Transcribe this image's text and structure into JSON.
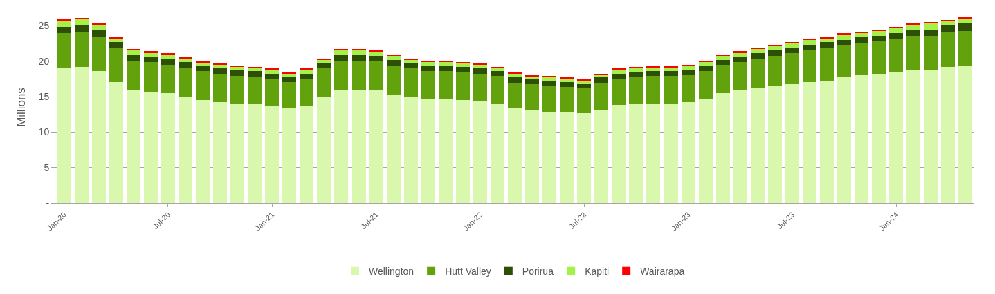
{
  "chart_data": {
    "type": "bar",
    "stacked": true,
    "ylabel": "Millions",
    "categories": [
      "Jan-20",
      null,
      null,
      null,
      null,
      null,
      "Jul-20",
      null,
      null,
      null,
      null,
      null,
      "Jan-21",
      null,
      null,
      null,
      null,
      null,
      "Jul-21",
      null,
      null,
      null,
      null,
      null,
      "Jan-22",
      null,
      null,
      null,
      null,
      null,
      "Jul-22",
      null,
      null,
      null,
      null,
      null,
      "Jan-23",
      null,
      null,
      null,
      null,
      null,
      "Jul-23",
      null,
      null,
      null,
      null,
      null,
      "Jan-24",
      null,
      null,
      null,
      null
    ],
    "series": [
      {
        "name": "Wellington",
        "color": "#d9f7ad",
        "values": [
          19.0,
          19.2,
          18.6,
          17.1,
          15.9,
          15.7,
          15.5,
          14.9,
          14.5,
          14.2,
          14.0,
          14.0,
          13.6,
          13.4,
          13.6,
          14.9,
          15.9,
          15.9,
          15.9,
          15.3,
          14.9,
          14.7,
          14.7,
          14.5,
          14.3,
          14.0,
          13.4,
          13.1,
          12.9,
          12.9,
          12.7,
          13.2,
          13.8,
          14.0,
          14.0,
          14.0,
          14.2,
          14.7,
          15.5,
          15.9,
          16.2,
          16.6,
          16.8,
          17.1,
          17.3,
          17.7,
          18.1,
          18.2,
          18.4,
          18.8,
          18.8,
          19.2,
          19.4
        ]
      },
      {
        "name": "Hutt Valley",
        "color": "#62a30d",
        "values": [
          5.0,
          5.0,
          4.8,
          4.7,
          4.2,
          4.2,
          4.0,
          4.1,
          4.1,
          4.0,
          3.9,
          3.7,
          3.9,
          3.7,
          3.9,
          4.1,
          4.2,
          4.2,
          4.2,
          4.0,
          4.1,
          3.9,
          3.9,
          3.9,
          3.9,
          3.9,
          3.6,
          3.7,
          3.7,
          3.5,
          3.5,
          3.8,
          3.7,
          3.7,
          3.9,
          3.9,
          3.9,
          3.9,
          4.0,
          4.0,
          4.1,
          4.2,
          4.4,
          4.5,
          4.5,
          4.6,
          4.4,
          4.7,
          4.7,
          4.8,
          4.8,
          5.0,
          4.9
        ]
      },
      {
        "name": "Porirua",
        "color": "#2d4f06",
        "values": [
          0.9,
          0.9,
          1.1,
          0.9,
          0.9,
          0.7,
          0.9,
          0.9,
          0.7,
          0.8,
          0.9,
          0.9,
          0.7,
          0.7,
          0.7,
          0.7,
          0.9,
          0.9,
          0.7,
          0.9,
          0.7,
          0.7,
          0.7,
          0.8,
          0.8,
          0.7,
          0.7,
          0.7,
          0.7,
          0.7,
          0.7,
          0.7,
          0.7,
          0.7,
          0.7,
          0.7,
          0.7,
          0.7,
          0.7,
          0.7,
          0.9,
          0.7,
          0.7,
          0.7,
          0.9,
          0.7,
          0.9,
          0.7,
          0.9,
          0.9,
          0.9,
          0.9,
          1.0
        ]
      },
      {
        "name": "Kapiti",
        "color": "#a6f04a",
        "values": [
          0.8,
          0.8,
          0.6,
          0.5,
          0.5,
          0.6,
          0.6,
          0.5,
          0.5,
          0.5,
          0.4,
          0.4,
          0.6,
          0.4,
          0.6,
          0.5,
          0.5,
          0.5,
          0.5,
          0.6,
          0.5,
          0.6,
          0.6,
          0.5,
          0.5,
          0.4,
          0.5,
          0.3,
          0.4,
          0.4,
          0.4,
          0.3,
          0.6,
          0.6,
          0.5,
          0.5,
          0.5,
          0.6,
          0.6,
          0.6,
          0.5,
          0.6,
          0.6,
          0.7,
          0.5,
          0.8,
          0.6,
          0.7,
          0.7,
          0.6,
          0.8,
          0.5,
          0.7
        ]
      },
      {
        "name": "Wairarapa",
        "color": "#ff0000",
        "values": [
          0.2,
          0.2,
          0.2,
          0.2,
          0.2,
          0.2,
          0.2,
          0.2,
          0.2,
          0.2,
          0.2,
          0.2,
          0.2,
          0.2,
          0.2,
          0.2,
          0.2,
          0.2,
          0.2,
          0.2,
          0.2,
          0.2,
          0.2,
          0.2,
          0.2,
          0.2,
          0.2,
          0.2,
          0.2,
          0.2,
          0.2,
          0.2,
          0.2,
          0.2,
          0.2,
          0.2,
          0.2,
          0.2,
          0.2,
          0.2,
          0.2,
          0.2,
          0.2,
          0.2,
          0.2,
          0.2,
          0.2,
          0.2,
          0.2,
          0.2,
          0.2,
          0.2,
          0.2
        ]
      }
    ],
    "ylim": [
      0,
      27
    ],
    "yticks": [
      {
        "value": 0,
        "label": "-"
      },
      5,
      10,
      15,
      20,
      25
    ],
    "grid": "y",
    "legend": "bottom"
  }
}
